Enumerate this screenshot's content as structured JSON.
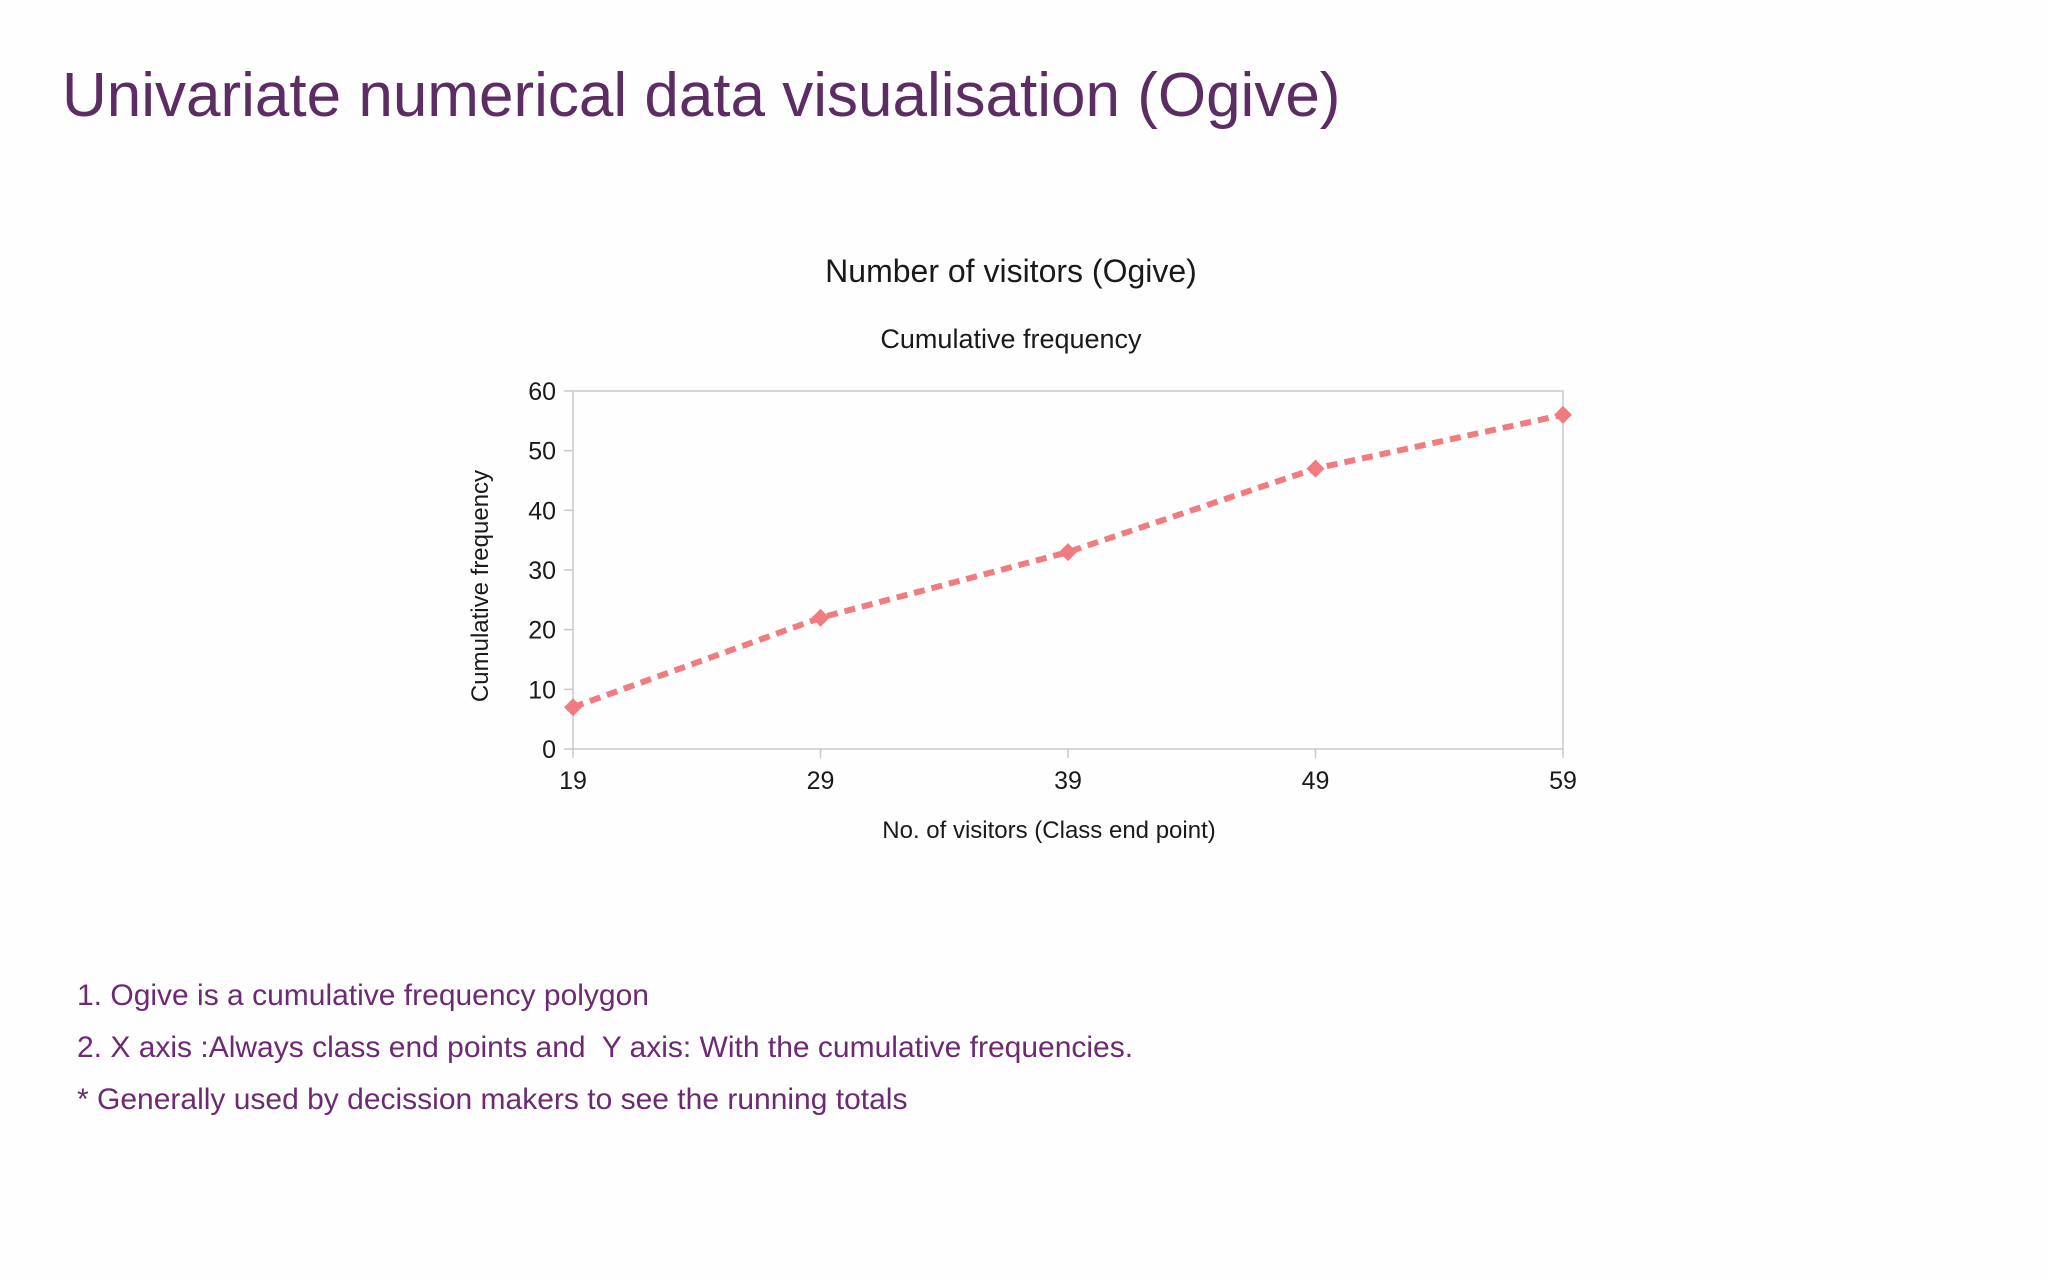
{
  "slide": {
    "title": "Univariate numerical data visualisation (Ogive)",
    "notes": [
      "1. Ogive is a cumulative frequency polygon",
      "2. X axis :Always class end points and  Y axis: With the cumulative frequencies.",
      "* Generally used by decission makers to see the running totals"
    ]
  },
  "chart_data": {
    "type": "line",
    "title": "Number of visitors (Ogive)",
    "subtitle": "Cumulative frequency",
    "xlabel": "No. of visitors (Class end point)",
    "ylabel": "Cumulative frequency",
    "x": [
      19,
      29,
      39,
      49,
      59
    ],
    "categories": [
      "19",
      "29",
      "39",
      "49",
      "59"
    ],
    "series": [
      {
        "values": [
          7,
          22,
          33,
          47,
          56
        ]
      }
    ],
    "ylim": [
      0,
      60
    ],
    "yticks": [
      0,
      10,
      20,
      30,
      40,
      50,
      60
    ],
    "yticklabels": [
      "0",
      "10",
      "20",
      "30",
      "40",
      "50",
      "60"
    ],
    "grid": false,
    "legend": "none",
    "line_style": "dashed",
    "marker": "diamond",
    "series_color": "#f07c80",
    "frame_color": "#c8c8c8"
  }
}
